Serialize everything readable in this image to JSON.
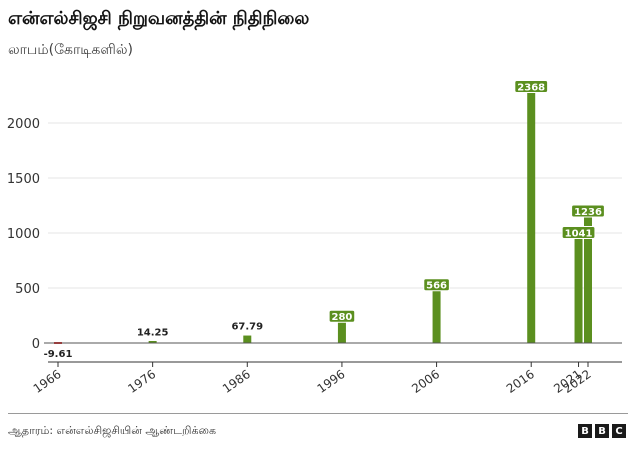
{
  "title": "என்எல்சிஜசி நிறுவனத்தின் நிதிநிலை",
  "subtitle": "லாபம்(கோடிகளில்)",
  "source": "ஆதாரம்: என்எல்சிஜசியின் ஆண்டறிக்கை",
  "logo": [
    "B",
    "B",
    "C"
  ],
  "colors": {
    "positive": "#5b8f1f",
    "negative": "#d62828",
    "grid": "#e4e4e4",
    "axis": "#333333"
  },
  "chart_data": {
    "type": "bar",
    "x": [
      1966,
      1976,
      1986,
      1996,
      2006,
      2016,
      2021,
      2022
    ],
    "x_tick_labels": [
      "1966",
      "1976",
      "1986",
      "1996",
      "2006",
      "2016",
      "2021",
      "2022"
    ],
    "values": [
      -9.61,
      14.25,
      67.79,
      280,
      566,
      2368,
      1041,
      1236
    ],
    "data_labels": [
      "-9.61",
      "14.25",
      "67.79",
      "280",
      "566",
      "2368",
      "1041",
      "1236"
    ],
    "y_ticks": [
      0,
      500,
      1000,
      1500,
      2000
    ],
    "y_tick_labels": [
      "0",
      "500",
      "1000",
      "1500",
      "2000"
    ],
    "xlim": [
      1963,
      2025
    ],
    "ylim": [
      -120,
      2380
    ],
    "grid": true,
    "legend": "none"
  }
}
